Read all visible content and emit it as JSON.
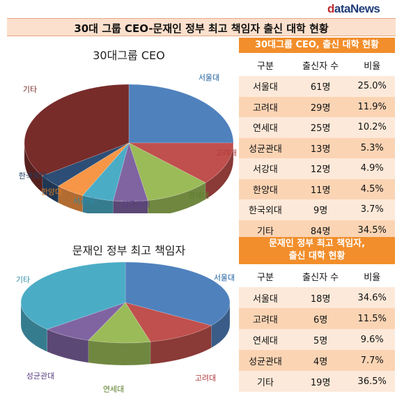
{
  "logo": {
    "prefix": "d",
    "rest": "ataNews"
  },
  "banner": {
    "title": "30대 그룹 CEO-문재인 정부 최고 책임자 출신 대학 현황"
  },
  "chart_data": [
    {
      "type": "pie",
      "title": "30대그룹 CEO",
      "categories": [
        "서울대",
        "고려대",
        "연세대",
        "성균관대",
        "서강대",
        "한양대",
        "한국외대",
        "기타"
      ],
      "values": [
        25.0,
        11.9,
        10.2,
        5.3,
        4.9,
        4.5,
        3.7,
        34.5
      ],
      "colors": [
        "#4f81bd",
        "#c0504d",
        "#9bbb59",
        "#8064a2",
        "#4bacc6",
        "#f79646",
        "#2c4d75",
        "#772c2a"
      ],
      "label_colors": [
        "#1f5f9f",
        "#b03a3a",
        "#5c7f2a",
        "#5a3f82",
        "#2c8aa6",
        "#d97a20",
        "#1f3e66",
        "#7a2a28"
      ]
    },
    {
      "type": "pie",
      "title": "문재인 정부 최고 책임자",
      "categories": [
        "서울대",
        "고려대",
        "연세대",
        "성균관대",
        "기타"
      ],
      "values": [
        34.6,
        11.5,
        9.6,
        7.7,
        36.5
      ],
      "colors": [
        "#4f81bd",
        "#c0504d",
        "#9bbb59",
        "#8064a2",
        "#4bacc6"
      ],
      "label_colors": [
        "#1f5f9f",
        "#b03a3a",
        "#5c7f2a",
        "#5a3f82",
        "#2c8aa6"
      ]
    }
  ],
  "table1": {
    "title": "30대그룹 CEO, 출신 대학 현황",
    "headers": [
      "구분",
      "출신자 수",
      "비율"
    ],
    "rows": [
      [
        "서울대",
        "61명",
        "25.0%"
      ],
      [
        "고려대",
        "29명",
        "11.9%"
      ],
      [
        "연세대",
        "25명",
        "10.2%"
      ],
      [
        "성균관대",
        "13명",
        "5.3%"
      ],
      [
        "서강대",
        "12명",
        "4.9%"
      ],
      [
        "한양대",
        "11명",
        "4.5%"
      ],
      [
        "한국외대",
        "9명",
        "3.7%"
      ],
      [
        "기타",
        "84명",
        "34.5%"
      ]
    ]
  },
  "table2": {
    "title_line1": "문재인 정부 최고 책임자,",
    "title_line2": "출신 대학 현황",
    "headers": [
      "구분",
      "출신자 수",
      "비율"
    ],
    "rows": [
      [
        "서울대",
        "18명",
        "34.6%"
      ],
      [
        "고려대",
        "6명",
        "11.5%"
      ],
      [
        "연세대",
        "5명",
        "9.6%"
      ],
      [
        "성균관대",
        "4명",
        "7.7%"
      ],
      [
        "기타",
        "19명",
        "36.5%"
      ]
    ]
  },
  "colors": {
    "accent": "#f28e2b",
    "row_light": "#fde9d9",
    "row_dark": "#fbd4b4",
    "banner": "#fbe0cd"
  }
}
